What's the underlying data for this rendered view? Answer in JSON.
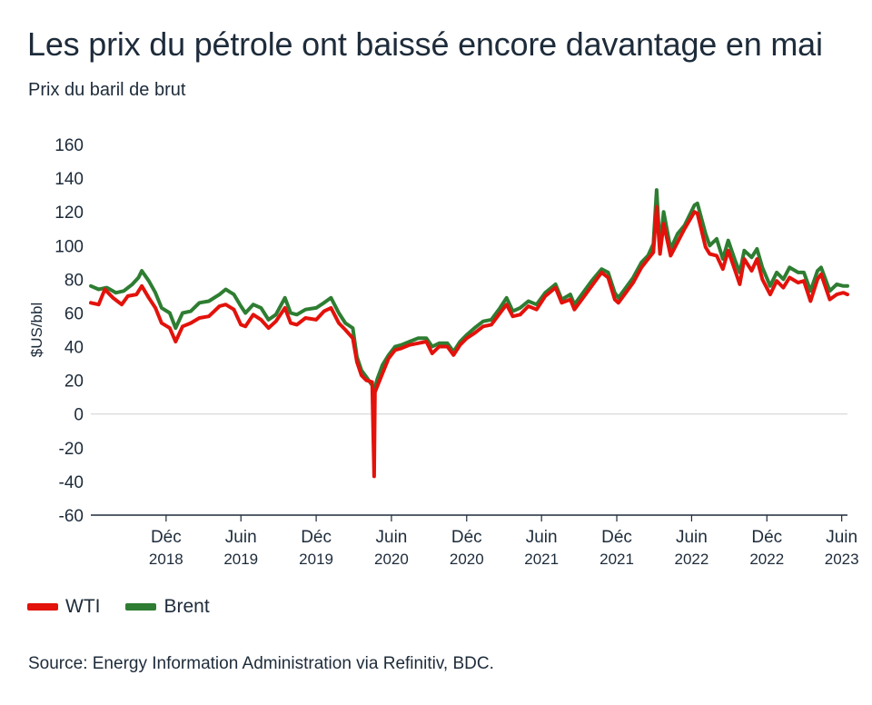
{
  "chart_data": {
    "type": "line",
    "title": "Les prix du pétrole ont baissé encore davantage en mai",
    "subtitle": "Prix du baril de brut",
    "ylabel": "$US/bbl",
    "ylim": [
      -60,
      160
    ],
    "yticks": [
      160,
      140,
      120,
      100,
      80,
      60,
      40,
      20,
      0,
      -20,
      -40,
      -60
    ],
    "xlim": [
      "2018-06-01",
      "2023-06-15"
    ],
    "xticks": [
      {
        "date": "2018-12-01",
        "line1": "Déc",
        "line2": "2018"
      },
      {
        "date": "2019-06-01",
        "line1": "Juin",
        "line2": "2019"
      },
      {
        "date": "2019-12-01",
        "line1": "Déc",
        "line2": "2019"
      },
      {
        "date": "2020-06-01",
        "line1": "Juin",
        "line2": "2020"
      },
      {
        "date": "2020-12-01",
        "line1": "Déc",
        "line2": "2020"
      },
      {
        "date": "2021-06-01",
        "line1": "Juin",
        "line2": "2021"
      },
      {
        "date": "2021-12-01",
        "line1": "Déc",
        "line2": "2021"
      },
      {
        "date": "2022-06-01",
        "line1": "Juin",
        "line2": "2022"
      },
      {
        "date": "2022-12-01",
        "line1": "Déc",
        "line2": "2022"
      },
      {
        "date": "2023-06-01",
        "line1": "Juin",
        "line2": "2023"
      }
    ],
    "grid": false,
    "legend": "bottom-left",
    "series": [
      {
        "name": "Brent",
        "color": "#2e7d32",
        "points": [
          [
            "2018-06-01",
            76
          ],
          [
            "2018-06-20",
            74
          ],
          [
            "2018-07-10",
            75
          ],
          [
            "2018-08-01",
            72
          ],
          [
            "2018-08-20",
            73
          ],
          [
            "2018-09-10",
            77
          ],
          [
            "2018-09-25",
            81
          ],
          [
            "2018-10-03",
            85
          ],
          [
            "2018-10-20",
            79
          ],
          [
            "2018-11-05",
            72
          ],
          [
            "2018-11-20",
            63
          ],
          [
            "2018-12-10",
            60
          ],
          [
            "2018-12-24",
            51
          ],
          [
            "2019-01-10",
            60
          ],
          [
            "2019-01-30",
            61
          ],
          [
            "2019-02-20",
            66
          ],
          [
            "2019-03-15",
            67
          ],
          [
            "2019-04-10",
            71
          ],
          [
            "2019-04-25",
            74
          ],
          [
            "2019-05-15",
            71
          ],
          [
            "2019-06-01",
            64
          ],
          [
            "2019-06-12",
            60
          ],
          [
            "2019-07-01",
            65
          ],
          [
            "2019-07-20",
            63
          ],
          [
            "2019-08-07",
            56
          ],
          [
            "2019-08-25",
            59
          ],
          [
            "2019-09-16",
            69
          ],
          [
            "2019-09-30",
            60
          ],
          [
            "2019-10-15",
            59
          ],
          [
            "2019-11-05",
            62
          ],
          [
            "2019-12-01",
            63
          ],
          [
            "2019-12-20",
            66
          ],
          [
            "2020-01-06",
            69
          ],
          [
            "2020-01-25",
            60
          ],
          [
            "2020-02-10",
            54
          ],
          [
            "2020-02-28",
            51
          ],
          [
            "2020-03-09",
            34
          ],
          [
            "2020-03-20",
            26
          ],
          [
            "2020-04-01",
            22
          ],
          [
            "2020-04-21",
            15
          ],
          [
            "2020-04-28",
            21
          ],
          [
            "2020-05-10",
            29
          ],
          [
            "2020-05-25",
            35
          ],
          [
            "2020-06-10",
            40
          ],
          [
            "2020-06-25",
            41
          ],
          [
            "2020-07-15",
            43
          ],
          [
            "2020-08-05",
            45
          ],
          [
            "2020-08-25",
            45
          ],
          [
            "2020-09-08",
            40
          ],
          [
            "2020-09-25",
            42
          ],
          [
            "2020-10-15",
            42
          ],
          [
            "2020-10-30",
            37
          ],
          [
            "2020-11-15",
            43
          ],
          [
            "2020-12-01",
            47
          ],
          [
            "2020-12-20",
            51
          ],
          [
            "2021-01-10",
            55
          ],
          [
            "2021-01-30",
            56
          ],
          [
            "2021-02-20",
            63
          ],
          [
            "2021-03-08",
            69
          ],
          [
            "2021-03-23",
            61
          ],
          [
            "2021-04-10",
            63
          ],
          [
            "2021-04-30",
            67
          ],
          [
            "2021-05-20",
            65
          ],
          [
            "2021-06-10",
            72
          ],
          [
            "2021-07-05",
            77
          ],
          [
            "2021-07-20",
            68
          ],
          [
            "2021-08-10",
            71
          ],
          [
            "2021-08-20",
            65
          ],
          [
            "2021-09-10",
            72
          ],
          [
            "2021-10-01",
            79
          ],
          [
            "2021-10-25",
            86
          ],
          [
            "2021-11-10",
            84
          ],
          [
            "2021-11-26",
            72
          ],
          [
            "2021-12-05",
            69
          ],
          [
            "2021-12-20",
            74
          ],
          [
            "2022-01-10",
            81
          ],
          [
            "2022-01-30",
            90
          ],
          [
            "2022-02-15",
            94
          ],
          [
            "2022-02-28",
            101
          ],
          [
            "2022-03-08",
            133
          ],
          [
            "2022-03-16",
            98
          ],
          [
            "2022-03-25",
            120
          ],
          [
            "2022-04-11",
            98
          ],
          [
            "2022-04-28",
            107
          ],
          [
            "2022-05-15",
            112
          ],
          [
            "2022-06-08",
            124
          ],
          [
            "2022-06-15",
            125
          ],
          [
            "2022-07-05",
            107
          ],
          [
            "2022-07-15",
            100
          ],
          [
            "2022-08-01",
            104
          ],
          [
            "2022-08-16",
            92
          ],
          [
            "2022-08-29",
            103
          ],
          [
            "2022-09-15",
            91
          ],
          [
            "2022-09-26",
            84
          ],
          [
            "2022-10-07",
            97
          ],
          [
            "2022-10-25",
            93
          ],
          [
            "2022-11-07",
            98
          ],
          [
            "2022-11-20",
            87
          ],
          [
            "2022-12-09",
            76
          ],
          [
            "2022-12-25",
            84
          ],
          [
            "2023-01-10",
            80
          ],
          [
            "2023-01-25",
            87
          ],
          [
            "2023-02-15",
            84
          ],
          [
            "2023-03-01",
            84
          ],
          [
            "2023-03-17",
            73
          ],
          [
            "2023-04-03",
            85
          ],
          [
            "2023-04-12",
            87
          ],
          [
            "2023-05-03",
            73
          ],
          [
            "2023-05-20",
            77
          ],
          [
            "2023-06-05",
            76
          ],
          [
            "2023-06-15",
            76
          ]
        ]
      },
      {
        "name": "WTI",
        "color": "#e3120b",
        "points": [
          [
            "2018-06-01",
            66
          ],
          [
            "2018-06-20",
            65
          ],
          [
            "2018-07-05",
            74
          ],
          [
            "2018-07-25",
            69
          ],
          [
            "2018-08-15",
            65
          ],
          [
            "2018-08-30",
            70
          ],
          [
            "2018-09-20",
            71
          ],
          [
            "2018-10-03",
            76
          ],
          [
            "2018-10-20",
            69
          ],
          [
            "2018-11-05",
            63
          ],
          [
            "2018-11-20",
            54
          ],
          [
            "2018-12-10",
            51
          ],
          [
            "2018-12-24",
            43
          ],
          [
            "2019-01-10",
            52
          ],
          [
            "2019-01-30",
            54
          ],
          [
            "2019-02-20",
            57
          ],
          [
            "2019-03-15",
            58
          ],
          [
            "2019-04-10",
            64
          ],
          [
            "2019-04-25",
            65
          ],
          [
            "2019-05-15",
            62
          ],
          [
            "2019-06-01",
            53
          ],
          [
            "2019-06-12",
            52
          ],
          [
            "2019-07-01",
            59
          ],
          [
            "2019-07-20",
            56
          ],
          [
            "2019-08-07",
            51
          ],
          [
            "2019-08-25",
            55
          ],
          [
            "2019-09-16",
            63
          ],
          [
            "2019-09-30",
            54
          ],
          [
            "2019-10-15",
            53
          ],
          [
            "2019-11-05",
            57
          ],
          [
            "2019-12-01",
            56
          ],
          [
            "2019-12-20",
            61
          ],
          [
            "2020-01-06",
            63
          ],
          [
            "2020-01-25",
            54
          ],
          [
            "2020-02-10",
            50
          ],
          [
            "2020-02-28",
            45
          ],
          [
            "2020-03-09",
            31
          ],
          [
            "2020-03-20",
            23
          ],
          [
            "2020-04-01",
            20
          ],
          [
            "2020-04-15",
            19
          ],
          [
            "2020-04-20",
            -37
          ],
          [
            "2020-04-22",
            13
          ],
          [
            "2020-05-10",
            24
          ],
          [
            "2020-05-25",
            33
          ],
          [
            "2020-06-10",
            38
          ],
          [
            "2020-06-25",
            39
          ],
          [
            "2020-07-15",
            41
          ],
          [
            "2020-08-05",
            42
          ],
          [
            "2020-08-25",
            43
          ],
          [
            "2020-09-08",
            36
          ],
          [
            "2020-09-25",
            40
          ],
          [
            "2020-10-15",
            40
          ],
          [
            "2020-10-30",
            35
          ],
          [
            "2020-11-15",
            41
          ],
          [
            "2020-12-01",
            45
          ],
          [
            "2020-12-20",
            48
          ],
          [
            "2021-01-10",
            52
          ],
          [
            "2021-01-30",
            53
          ],
          [
            "2021-02-20",
            60
          ],
          [
            "2021-03-08",
            65
          ],
          [
            "2021-03-23",
            58
          ],
          [
            "2021-04-10",
            59
          ],
          [
            "2021-04-30",
            64
          ],
          [
            "2021-05-20",
            62
          ],
          [
            "2021-06-10",
            70
          ],
          [
            "2021-07-05",
            75
          ],
          [
            "2021-07-20",
            66
          ],
          [
            "2021-08-10",
            68
          ],
          [
            "2021-08-20",
            62
          ],
          [
            "2021-09-10",
            69
          ],
          [
            "2021-10-01",
            76
          ],
          [
            "2021-10-25",
            84
          ],
          [
            "2021-11-10",
            81
          ],
          [
            "2021-11-26",
            68
          ],
          [
            "2021-12-05",
            66
          ],
          [
            "2021-12-20",
            71
          ],
          [
            "2022-01-10",
            78
          ],
          [
            "2022-01-30",
            87
          ],
          [
            "2022-02-15",
            92
          ],
          [
            "2022-02-28",
            96
          ],
          [
            "2022-03-08",
            123
          ],
          [
            "2022-03-16",
            95
          ],
          [
            "2022-03-25",
            113
          ],
          [
            "2022-04-11",
            94
          ],
          [
            "2022-04-28",
            102
          ],
          [
            "2022-05-15",
            110
          ],
          [
            "2022-06-08",
            120
          ],
          [
            "2022-06-15",
            119
          ],
          [
            "2022-07-05",
            99
          ],
          [
            "2022-07-15",
            95
          ],
          [
            "2022-08-01",
            94
          ],
          [
            "2022-08-16",
            86
          ],
          [
            "2022-08-29",
            97
          ],
          [
            "2022-09-15",
            85
          ],
          [
            "2022-09-26",
            77
          ],
          [
            "2022-10-07",
            92
          ],
          [
            "2022-10-25",
            85
          ],
          [
            "2022-11-07",
            92
          ],
          [
            "2022-11-20",
            80
          ],
          [
            "2022-12-09",
            71
          ],
          [
            "2022-12-25",
            79
          ],
          [
            "2023-01-10",
            75
          ],
          [
            "2023-01-25",
            81
          ],
          [
            "2023-02-15",
            78
          ],
          [
            "2023-03-01",
            79
          ],
          [
            "2023-03-17",
            67
          ],
          [
            "2023-04-03",
            80
          ],
          [
            "2023-04-12",
            83
          ],
          [
            "2023-05-03",
            68
          ],
          [
            "2023-05-20",
            71
          ],
          [
            "2023-06-05",
            72
          ],
          [
            "2023-06-15",
            71
          ]
        ]
      }
    ],
    "source": "Source: Energy Information Administration via Refinitiv, BDC."
  },
  "legend_items": {
    "wti": {
      "label": "WTI",
      "color": "#e3120b"
    },
    "brent": {
      "label": "Brent",
      "color": "#2e7d32"
    }
  }
}
